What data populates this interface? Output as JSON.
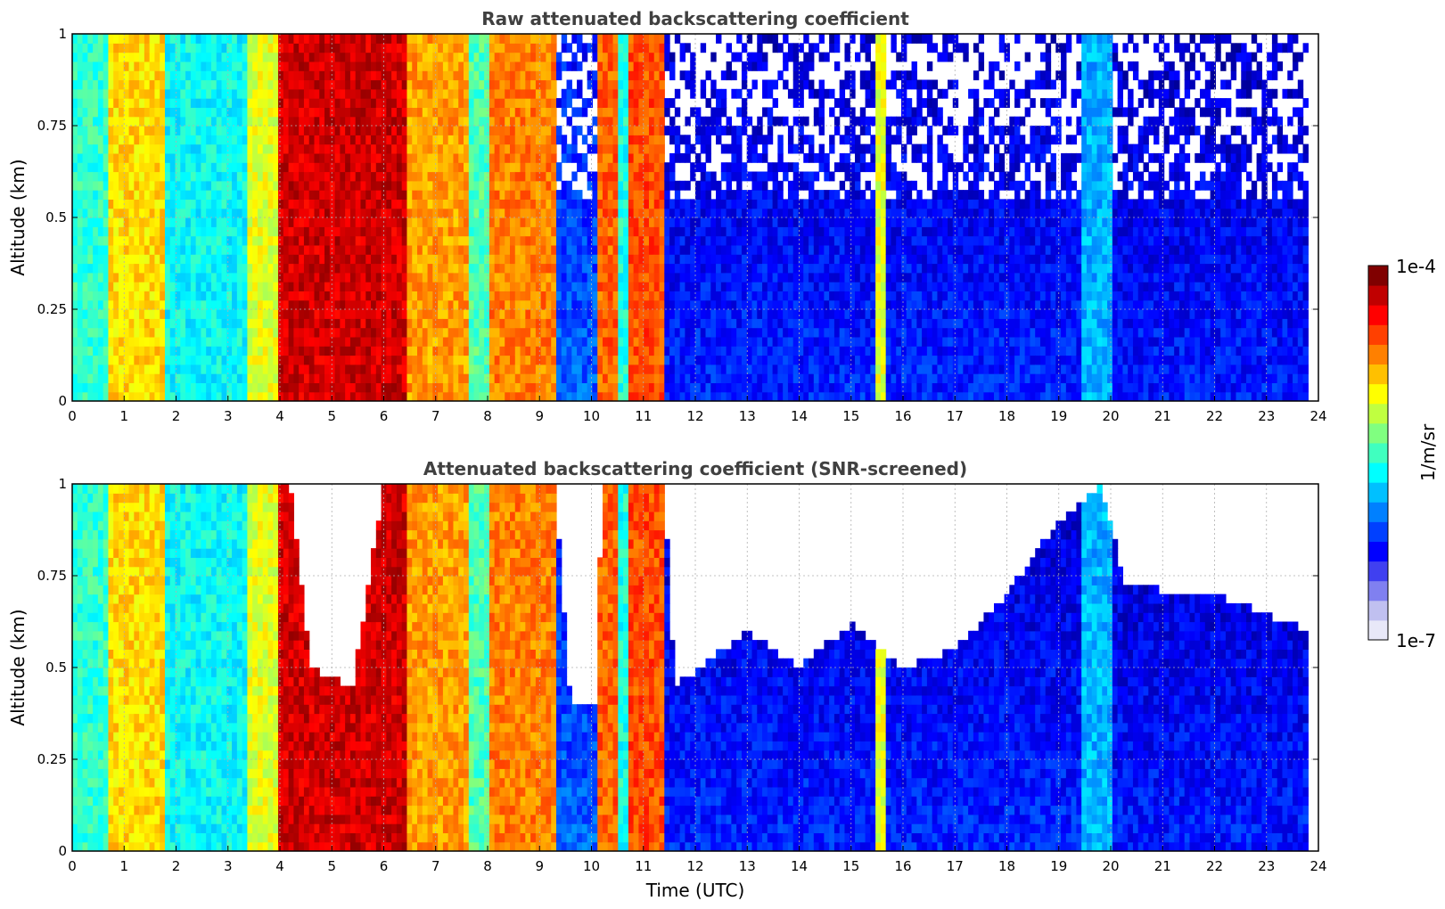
{
  "chart_data": [
    {
      "type": "heatmap",
      "title": "Raw attenuated backscattering coefficient",
      "xlabel": "",
      "ylabel": "Altitude (km)",
      "xlim": [
        0,
        24
      ],
      "ylim": [
        0,
        1
      ],
      "x_ticks": [
        "0",
        "1",
        "2",
        "3",
        "4",
        "5",
        "6",
        "7",
        "8",
        "9",
        "10",
        "11",
        "12",
        "13",
        "14",
        "15",
        "16",
        "17",
        "18",
        "19",
        "20",
        "21",
        "22",
        "23",
        "24"
      ],
      "y_ticks": [
        "0",
        "0.25",
        "0.5",
        "0.75",
        "1"
      ],
      "grid": true,
      "colorscale": "jet",
      "color_scale_type": "log",
      "value_range": [
        1e-07,
        0.0001
      ],
      "time_segments_utc": [
        {
          "t0": 0.0,
          "t1": 0.7,
          "level": 0.42
        },
        {
          "t0": 0.7,
          "t1": 1.8,
          "level": 0.66
        },
        {
          "t0": 1.8,
          "t1": 3.4,
          "level": 0.38
        },
        {
          "t0": 3.4,
          "t1": 4.0,
          "level": 0.6
        },
        {
          "t0": 4.0,
          "t1": 6.4,
          "level": 0.92
        },
        {
          "t0": 6.4,
          "t1": 7.6,
          "level": 0.72
        },
        {
          "t0": 7.6,
          "t1": 8.0,
          "level": 0.45
        },
        {
          "t0": 8.0,
          "t1": 9.3,
          "level": 0.75
        },
        {
          "t0": 9.3,
          "t1": 10.1,
          "level": 0.22
        },
        {
          "t0": 10.1,
          "t1": 10.5,
          "level": 0.78
        },
        {
          "t0": 10.5,
          "t1": 10.7,
          "level": 0.4
        },
        {
          "t0": 10.7,
          "t1": 11.4,
          "level": 0.8
        },
        {
          "t0": 11.4,
          "t1": 15.5,
          "level": 0.16
        },
        {
          "t0": 15.5,
          "t1": 15.65,
          "level": 0.6
        },
        {
          "t0": 15.65,
          "t1": 19.4,
          "level": 0.16
        },
        {
          "t0": 19.4,
          "t1": 20.0,
          "level": 0.3
        },
        {
          "t0": 20.0,
          "t1": 23.8,
          "level": 0.15
        }
      ]
    },
    {
      "type": "heatmap",
      "title": "Attenuated backscattering coefficient (SNR-screened)",
      "xlabel": "Time (UTC)",
      "ylabel": "Altitude (km)",
      "xlim": [
        0,
        24
      ],
      "ylim": [
        0,
        1
      ],
      "x_ticks": [
        "0",
        "1",
        "2",
        "3",
        "4",
        "5",
        "6",
        "7",
        "8",
        "9",
        "10",
        "11",
        "12",
        "13",
        "14",
        "15",
        "16",
        "17",
        "18",
        "19",
        "20",
        "21",
        "22",
        "23",
        "24"
      ],
      "y_ticks": [
        "0",
        "0.25",
        "0.5",
        "0.75",
        "1"
      ],
      "grid": true,
      "colorscale": "jet",
      "color_scale_type": "log",
      "value_range": [
        1e-07,
        0.0001
      ],
      "screened_top_km": [
        {
          "t": 0.0,
          "top": 1.0
        },
        {
          "t": 4.2,
          "top": 1.0
        },
        {
          "t": 4.6,
          "top": 0.5
        },
        {
          "t": 5.4,
          "top": 0.45
        },
        {
          "t": 6.0,
          "top": 1.0
        },
        {
          "t": 9.3,
          "top": 1.0
        },
        {
          "t": 9.6,
          "top": 0.4
        },
        {
          "t": 10.1,
          "top": 0.4
        },
        {
          "t": 10.2,
          "top": 1.0
        },
        {
          "t": 11.4,
          "top": 1.0
        },
        {
          "t": 11.6,
          "top": 0.45
        },
        {
          "t": 13.0,
          "top": 0.6
        },
        {
          "t": 14.0,
          "top": 0.5
        },
        {
          "t": 15.0,
          "top": 0.62
        },
        {
          "t": 16.0,
          "top": 0.5
        },
        {
          "t": 17.0,
          "top": 0.55
        },
        {
          "t": 18.0,
          "top": 0.7
        },
        {
          "t": 19.0,
          "top": 0.9
        },
        {
          "t": 19.8,
          "top": 1.0
        },
        {
          "t": 20.3,
          "top": 0.72
        },
        {
          "t": 22.0,
          "top": 0.7
        },
        {
          "t": 23.8,
          "top": 0.6
        }
      ]
    }
  ],
  "colorbar": {
    "label": "1/m/sr",
    "max_label": "1e-4",
    "min_label": "1e-7",
    "colors": [
      "#e8e8f8",
      "#c0c0f0",
      "#8080f0",
      "#4040f0",
      "#0000ff",
      "#0040ff",
      "#0080ff",
      "#00c0ff",
      "#00ffff",
      "#40ffbf",
      "#80ff80",
      "#c0ff40",
      "#ffff00",
      "#ffc000",
      "#ff8000",
      "#ff4000",
      "#ff0000",
      "#c00000",
      "#800000"
    ]
  }
}
